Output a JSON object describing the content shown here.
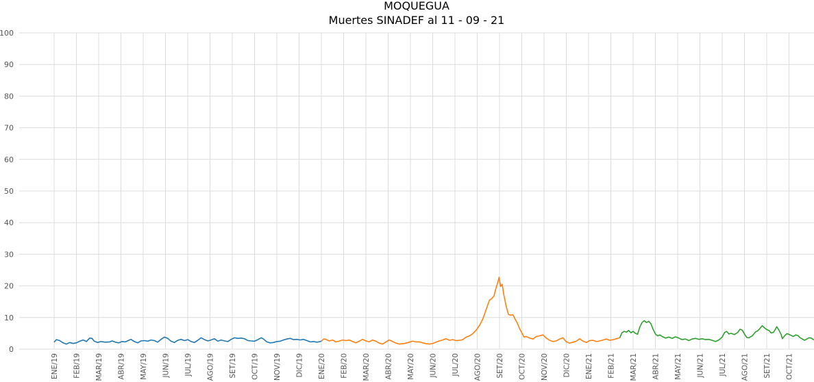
{
  "chart_data": {
    "type": "line",
    "title": "MOQUEGUA",
    "subtitle": "Muertes SINADEF al 11 - 09 - 21",
    "xlabel": "",
    "ylabel": "",
    "ylim": [
      0,
      100
    ],
    "yticks": [
      0,
      10,
      20,
      30,
      40,
      50,
      60,
      70,
      80,
      90,
      100
    ],
    "grid": true,
    "x_unit": "month",
    "x_tick_labels": [
      "ENE/19",
      "FEB/19",
      "MAR/19",
      "ABR/19",
      "MAY/19",
      "JUN/19",
      "JUL/19",
      "AGO/19",
      "SET/19",
      "OCT/19",
      "NOV/19",
      "DIC/19",
      "ENE/20",
      "FEB/20",
      "MAR/20",
      "ABR/20",
      "MAY/20",
      "JUN/20",
      "JUL/20",
      "AGO/20",
      "SET/20",
      "OCT/20",
      "NOV/20",
      "DIC/20",
      "ENE/21",
      "FEB/21",
      "MAR/21",
      "ABR/21",
      "MAY/21",
      "JUN/21",
      "JUL/21",
      "AGO/21",
      "SET/21",
      "OCT/21"
    ],
    "series": [
      {
        "color": "#1f77b4",
        "points": [
          [
            0,
            2.2
          ],
          [
            0.1,
            3.0
          ],
          [
            0.25,
            2.7
          ],
          [
            0.4,
            2.0
          ],
          [
            0.55,
            1.6
          ],
          [
            0.7,
            2.1
          ],
          [
            0.85,
            1.8
          ],
          [
            1.0,
            2.0
          ],
          [
            1.15,
            2.5
          ],
          [
            1.3,
            2.9
          ],
          [
            1.45,
            2.4
          ],
          [
            1.6,
            3.5
          ],
          [
            1.7,
            3.4
          ],
          [
            1.8,
            2.5
          ],
          [
            1.95,
            2.1
          ],
          [
            2.1,
            2.4
          ],
          [
            2.3,
            2.2
          ],
          [
            2.5,
            2.3
          ],
          [
            2.6,
            2.6
          ],
          [
            2.75,
            2.2
          ],
          [
            2.9,
            2.0
          ],
          [
            3.05,
            2.4
          ],
          [
            3.2,
            2.3
          ],
          [
            3.35,
            2.8
          ],
          [
            3.45,
            3.1
          ],
          [
            3.6,
            2.4
          ],
          [
            3.75,
            2.0
          ],
          [
            3.9,
            2.6
          ],
          [
            4.05,
            2.7
          ],
          [
            4.2,
            2.5
          ],
          [
            4.35,
            2.9
          ],
          [
            4.5,
            2.7
          ],
          [
            4.65,
            2.2
          ],
          [
            4.8,
            3.1
          ],
          [
            4.95,
            3.8
          ],
          [
            5.1,
            3.4
          ],
          [
            5.25,
            2.5
          ],
          [
            5.4,
            2.1
          ],
          [
            5.55,
            2.8
          ],
          [
            5.7,
            3.1
          ],
          [
            5.85,
            2.7
          ],
          [
            6.0,
            3.0
          ],
          [
            6.15,
            2.4
          ],
          [
            6.3,
            2.1
          ],
          [
            6.45,
            2.8
          ],
          [
            6.6,
            3.6
          ],
          [
            6.75,
            3.0
          ],
          [
            6.9,
            2.6
          ],
          [
            7.05,
            2.9
          ],
          [
            7.2,
            3.3
          ],
          [
            7.35,
            2.5
          ],
          [
            7.5,
            2.9
          ],
          [
            7.65,
            2.6
          ],
          [
            7.8,
            2.4
          ],
          [
            7.95,
            3.1
          ],
          [
            8.1,
            3.6
          ],
          [
            8.25,
            3.4
          ],
          [
            8.4,
            3.5
          ],
          [
            8.55,
            3.3
          ],
          [
            8.7,
            2.7
          ],
          [
            8.85,
            2.6
          ],
          [
            9.0,
            2.5
          ],
          [
            9.15,
            3.0
          ],
          [
            9.3,
            3.6
          ],
          [
            9.4,
            3.2
          ],
          [
            9.55,
            2.3
          ],
          [
            9.7,
            2.0
          ],
          [
            9.85,
            2.1
          ],
          [
            10.0,
            2.4
          ],
          [
            10.15,
            2.5
          ],
          [
            10.3,
            2.9
          ],
          [
            10.45,
            3.2
          ],
          [
            10.6,
            3.4
          ],
          [
            10.75,
            3.0
          ],
          [
            10.9,
            3.1
          ],
          [
            11.05,
            2.9
          ],
          [
            11.2,
            3.1
          ],
          [
            11.35,
            2.7
          ],
          [
            11.5,
            2.3
          ],
          [
            11.65,
            2.4
          ],
          [
            11.8,
            2.2
          ],
          [
            11.95,
            2.4
          ],
          [
            12.0,
            2.5
          ]
        ]
      },
      {
        "color": "#ff7f0e",
        "points": [
          [
            12.0,
            2.5
          ],
          [
            12.1,
            3.2
          ],
          [
            12.2,
            3.1
          ],
          [
            12.35,
            2.6
          ],
          [
            12.5,
            2.9
          ],
          [
            12.65,
            2.3
          ],
          [
            12.8,
            2.5
          ],
          [
            12.95,
            2.9
          ],
          [
            13.1,
            2.7
          ],
          [
            13.25,
            2.9
          ],
          [
            13.4,
            2.4
          ],
          [
            13.55,
            2.0
          ],
          [
            13.7,
            2.5
          ],
          [
            13.85,
            3.1
          ],
          [
            14.0,
            2.6
          ],
          [
            14.15,
            2.3
          ],
          [
            14.3,
            2.9
          ],
          [
            14.45,
            2.5
          ],
          [
            14.6,
            1.9
          ],
          [
            14.75,
            1.6
          ],
          [
            14.9,
            2.3
          ],
          [
            15.05,
            2.9
          ],
          [
            15.2,
            2.4
          ],
          [
            15.35,
            1.9
          ],
          [
            15.5,
            1.6
          ],
          [
            15.65,
            1.7
          ],
          [
            15.8,
            1.9
          ],
          [
            15.95,
            2.2
          ],
          [
            16.1,
            2.5
          ],
          [
            16.25,
            2.3
          ],
          [
            16.4,
            2.3
          ],
          [
            16.55,
            2.0
          ],
          [
            16.7,
            1.7
          ],
          [
            16.85,
            1.6
          ],
          [
            17.0,
            1.8
          ],
          [
            17.15,
            2.2
          ],
          [
            17.3,
            2.6
          ],
          [
            17.45,
            2.9
          ],
          [
            17.6,
            3.3
          ],
          [
            17.75,
            2.8
          ],
          [
            17.9,
            3.0
          ],
          [
            18.05,
            2.7
          ],
          [
            18.2,
            2.8
          ],
          [
            18.35,
            3.0
          ],
          [
            18.5,
            3.8
          ],
          [
            18.65,
            4.2
          ],
          [
            18.8,
            4.9
          ],
          [
            18.95,
            6.0
          ],
          [
            19.1,
            7.5
          ],
          [
            19.25,
            9.5
          ],
          [
            19.35,
            11.5
          ],
          [
            19.45,
            13.5
          ],
          [
            19.55,
            15.5
          ],
          [
            19.65,
            16.0
          ],
          [
            19.75,
            16.8
          ],
          [
            19.85,
            19.5
          ],
          [
            19.92,
            21.0
          ],
          [
            19.98,
            22.7
          ],
          [
            20.05,
            19.8
          ],
          [
            20.12,
            20.5
          ],
          [
            20.2,
            17.0
          ],
          [
            20.3,
            13.5
          ],
          [
            20.4,
            11.0
          ],
          [
            20.5,
            10.7
          ],
          [
            20.6,
            10.9
          ],
          [
            20.7,
            9.5
          ],
          [
            20.8,
            8.2
          ],
          [
            20.9,
            6.5
          ],
          [
            21.0,
            5.2
          ],
          [
            21.1,
            3.8
          ],
          [
            21.2,
            4.0
          ],
          [
            21.35,
            3.5
          ],
          [
            21.5,
            3.2
          ],
          [
            21.65,
            4.0
          ],
          [
            21.8,
            4.2
          ],
          [
            21.95,
            4.5
          ],
          [
            22.1,
            3.5
          ],
          [
            22.25,
            2.8
          ],
          [
            22.4,
            2.4
          ],
          [
            22.55,
            2.6
          ],
          [
            22.7,
            3.2
          ],
          [
            22.85,
            3.6
          ],
          [
            23.0,
            2.3
          ],
          [
            23.15,
            1.9
          ],
          [
            23.3,
            2.2
          ],
          [
            23.45,
            2.5
          ],
          [
            23.6,
            3.3
          ],
          [
            23.75,
            2.5
          ],
          [
            23.9,
            2.1
          ],
          [
            24.05,
            2.7
          ],
          [
            24.2,
            2.8
          ],
          [
            24.35,
            2.4
          ],
          [
            24.5,
            2.6
          ],
          [
            24.65,
            2.9
          ],
          [
            24.8,
            3.2
          ],
          [
            24.95,
            2.8
          ],
          [
            25.1,
            3.0
          ],
          [
            25.25,
            3.3
          ],
          [
            25.4,
            3.6
          ]
        ]
      },
      {
        "color": "#2ca02c",
        "points": [
          [
            25.4,
            3.6
          ],
          [
            25.5,
            5.2
          ],
          [
            25.6,
            5.6
          ],
          [
            25.7,
            5.4
          ],
          [
            25.8,
            5.9
          ],
          [
            25.9,
            5.2
          ],
          [
            26.0,
            5.6
          ],
          [
            26.1,
            5.0
          ],
          [
            26.2,
            4.7
          ],
          [
            26.3,
            7.0
          ],
          [
            26.4,
            8.4
          ],
          [
            26.5,
            9.0
          ],
          [
            26.6,
            8.4
          ],
          [
            26.7,
            8.8
          ],
          [
            26.8,
            8.0
          ],
          [
            26.9,
            6.2
          ],
          [
            27.0,
            4.8
          ],
          [
            27.1,
            4.2
          ],
          [
            27.2,
            4.5
          ],
          [
            27.3,
            4.0
          ],
          [
            27.45,
            3.5
          ],
          [
            27.6,
            3.8
          ],
          [
            27.75,
            3.4
          ],
          [
            27.9,
            3.9
          ],
          [
            28.05,
            3.5
          ],
          [
            28.2,
            3.0
          ],
          [
            28.35,
            3.2
          ],
          [
            28.5,
            2.7
          ],
          [
            28.65,
            3.2
          ],
          [
            28.8,
            3.4
          ],
          [
            28.95,
            3.1
          ],
          [
            29.1,
            3.3
          ],
          [
            29.25,
            3.0
          ],
          [
            29.4,
            3.1
          ],
          [
            29.55,
            2.8
          ],
          [
            29.7,
            2.4
          ],
          [
            29.85,
            2.9
          ],
          [
            30.0,
            3.8
          ],
          [
            30.1,
            5.2
          ],
          [
            30.2,
            5.6
          ],
          [
            30.3,
            4.8
          ],
          [
            30.4,
            5.0
          ],
          [
            30.55,
            4.6
          ],
          [
            30.7,
            5.3
          ],
          [
            30.8,
            6.3
          ],
          [
            30.9,
            6.0
          ],
          [
            31.0,
            4.8
          ],
          [
            31.1,
            3.7
          ],
          [
            31.2,
            3.6
          ],
          [
            31.35,
            4.2
          ],
          [
            31.5,
            5.5
          ],
          [
            31.6,
            5.8
          ],
          [
            31.7,
            6.6
          ],
          [
            31.8,
            7.4
          ],
          [
            31.9,
            6.7
          ],
          [
            32.0,
            6.2
          ],
          [
            32.1,
            5.9
          ],
          [
            32.2,
            5.1
          ],
          [
            32.3,
            5.3
          ],
          [
            32.4,
            6.4
          ],
          [
            32.45,
            7.1
          ],
          [
            32.55,
            6.0
          ],
          [
            32.65,
            4.6
          ],
          [
            32.7,
            3.3
          ],
          [
            32.8,
            4.2
          ],
          [
            32.9,
            4.9
          ],
          [
            33.0,
            4.7
          ],
          [
            33.1,
            4.3
          ],
          [
            33.2,
            4.0
          ],
          [
            33.3,
            4.5
          ],
          [
            33.4,
            4.3
          ],
          [
            33.5,
            3.6
          ],
          [
            33.6,
            3.2
          ],
          [
            33.7,
            2.8
          ],
          [
            33.8,
            3.2
          ],
          [
            33.9,
            3.6
          ],
          [
            34.0,
            3.5
          ],
          [
            34.1,
            3.0
          ],
          [
            34.2,
            2.7
          ],
          [
            34.3,
            3.8
          ],
          [
            34.4,
            4.6
          ],
          [
            34.5,
            4.7
          ],
          [
            34.6,
            3.7
          ],
          [
            34.7,
            3.4
          ],
          [
            34.8,
            3.8
          ],
          [
            34.9,
            3.3
          ],
          [
            35.0,
            3.2
          ],
          [
            35.1,
            3.0
          ],
          [
            35.2,
            2.5
          ],
          [
            35.3,
            2.7
          ],
          [
            35.4,
            3.1
          ],
          [
            35.5,
            3.1
          ]
        ]
      }
    ]
  }
}
